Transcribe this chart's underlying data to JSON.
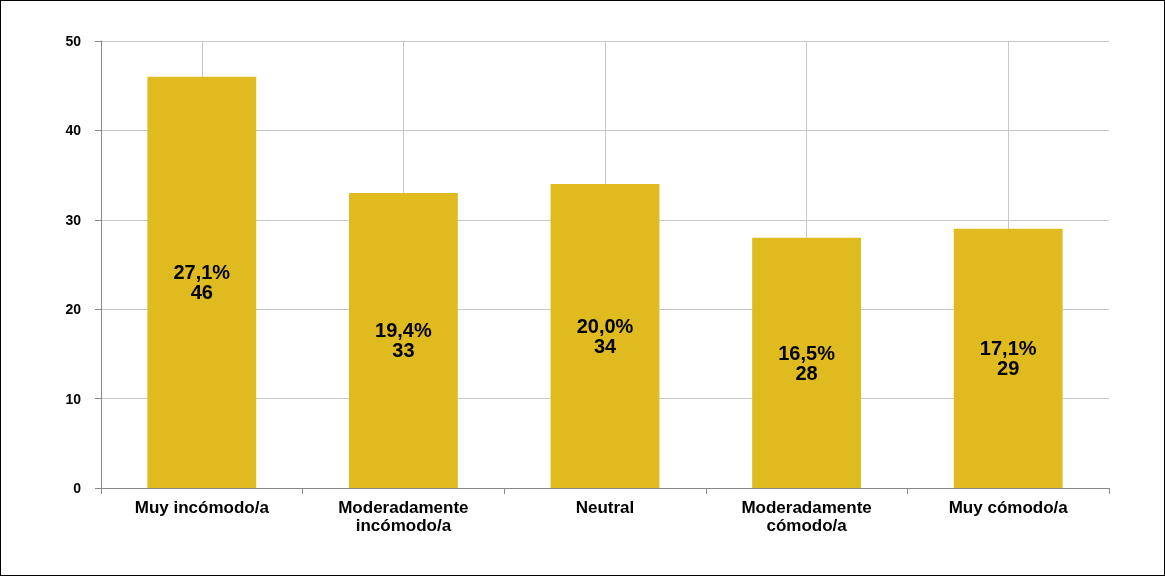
{
  "chart_data": {
    "type": "bar",
    "categories": [
      "Muy incómodo/a",
      "Moderadamente\nincómodo/a",
      "Neutral",
      "Moderadamente\ncómodo/a",
      "Muy cómodo/a"
    ],
    "values": [
      46,
      33,
      34,
      28,
      29
    ],
    "value_labels": [
      "27,1%\n46",
      "19,4%\n33",
      "20,0%\n34",
      "16,5%\n28",
      "17,1%\n29"
    ],
    "color": "#e0bb1f",
    "ylim": [
      0,
      50
    ],
    "yticks": [
      0,
      10,
      20,
      30,
      40,
      50
    ],
    "grid": true
  }
}
